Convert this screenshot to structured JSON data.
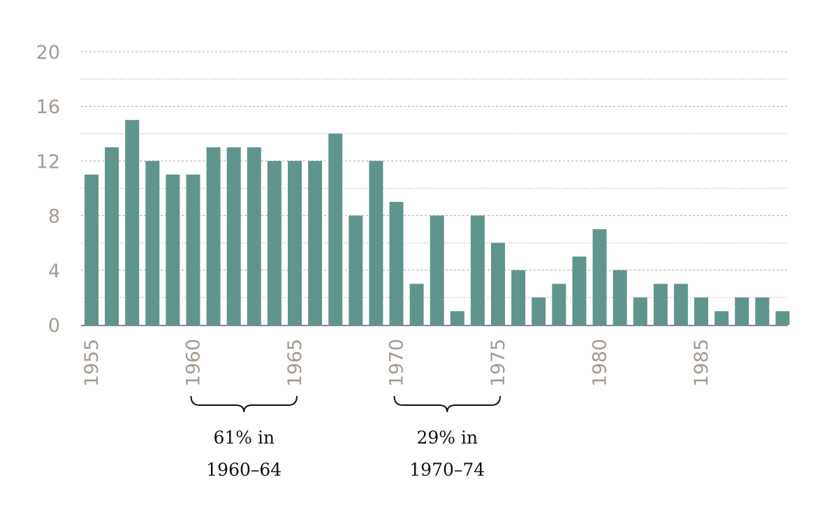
{
  "chart_data": {
    "type": "bar",
    "title": "",
    "xlabel": "",
    "ylabel": "",
    "ylim": [
      0,
      20
    ],
    "y_ticks": [
      0,
      4,
      8,
      12,
      16,
      20
    ],
    "x_tick_labels": [
      "1955",
      "1960",
      "1965",
      "1970",
      "1975",
      "1980",
      "1985"
    ],
    "grid": "horizontal dotted",
    "categories": [
      "1955",
      "1956",
      "1957",
      "1958",
      "1959",
      "1960",
      "1961",
      "1962",
      "1963",
      "1964",
      "1965",
      "1966",
      "1967",
      "1968",
      "1969",
      "1970",
      "1971",
      "1972",
      "1973",
      "1974",
      "1975",
      "1976",
      "1977",
      "1978",
      "1979",
      "1980",
      "1981",
      "1982",
      "1983",
      "1984",
      "1985",
      "1986",
      "1987",
      "1988",
      "1989"
    ],
    "values": [
      11,
      13,
      15,
      12,
      11,
      11,
      13,
      13,
      13,
      12,
      12,
      12,
      14,
      8,
      12,
      9,
      3,
      8,
      1,
      8,
      6,
      4,
      2,
      3,
      5,
      7,
      4,
      2,
      3,
      3,
      2,
      1,
      2,
      2,
      1
    ],
    "annotations": [
      {
        "from": "1960",
        "to": "1965",
        "line1": "61% in",
        "line2": "1960–64"
      },
      {
        "from": "1970",
        "to": "1975",
        "line1": "29% in",
        "line2": "1970–74"
      }
    ]
  },
  "colors": {
    "bar": "#5f958c",
    "axis": "#7f87a6",
    "grid": "#a7a7a7",
    "tick_text": "#a39a92",
    "annotation": "#111111"
  }
}
